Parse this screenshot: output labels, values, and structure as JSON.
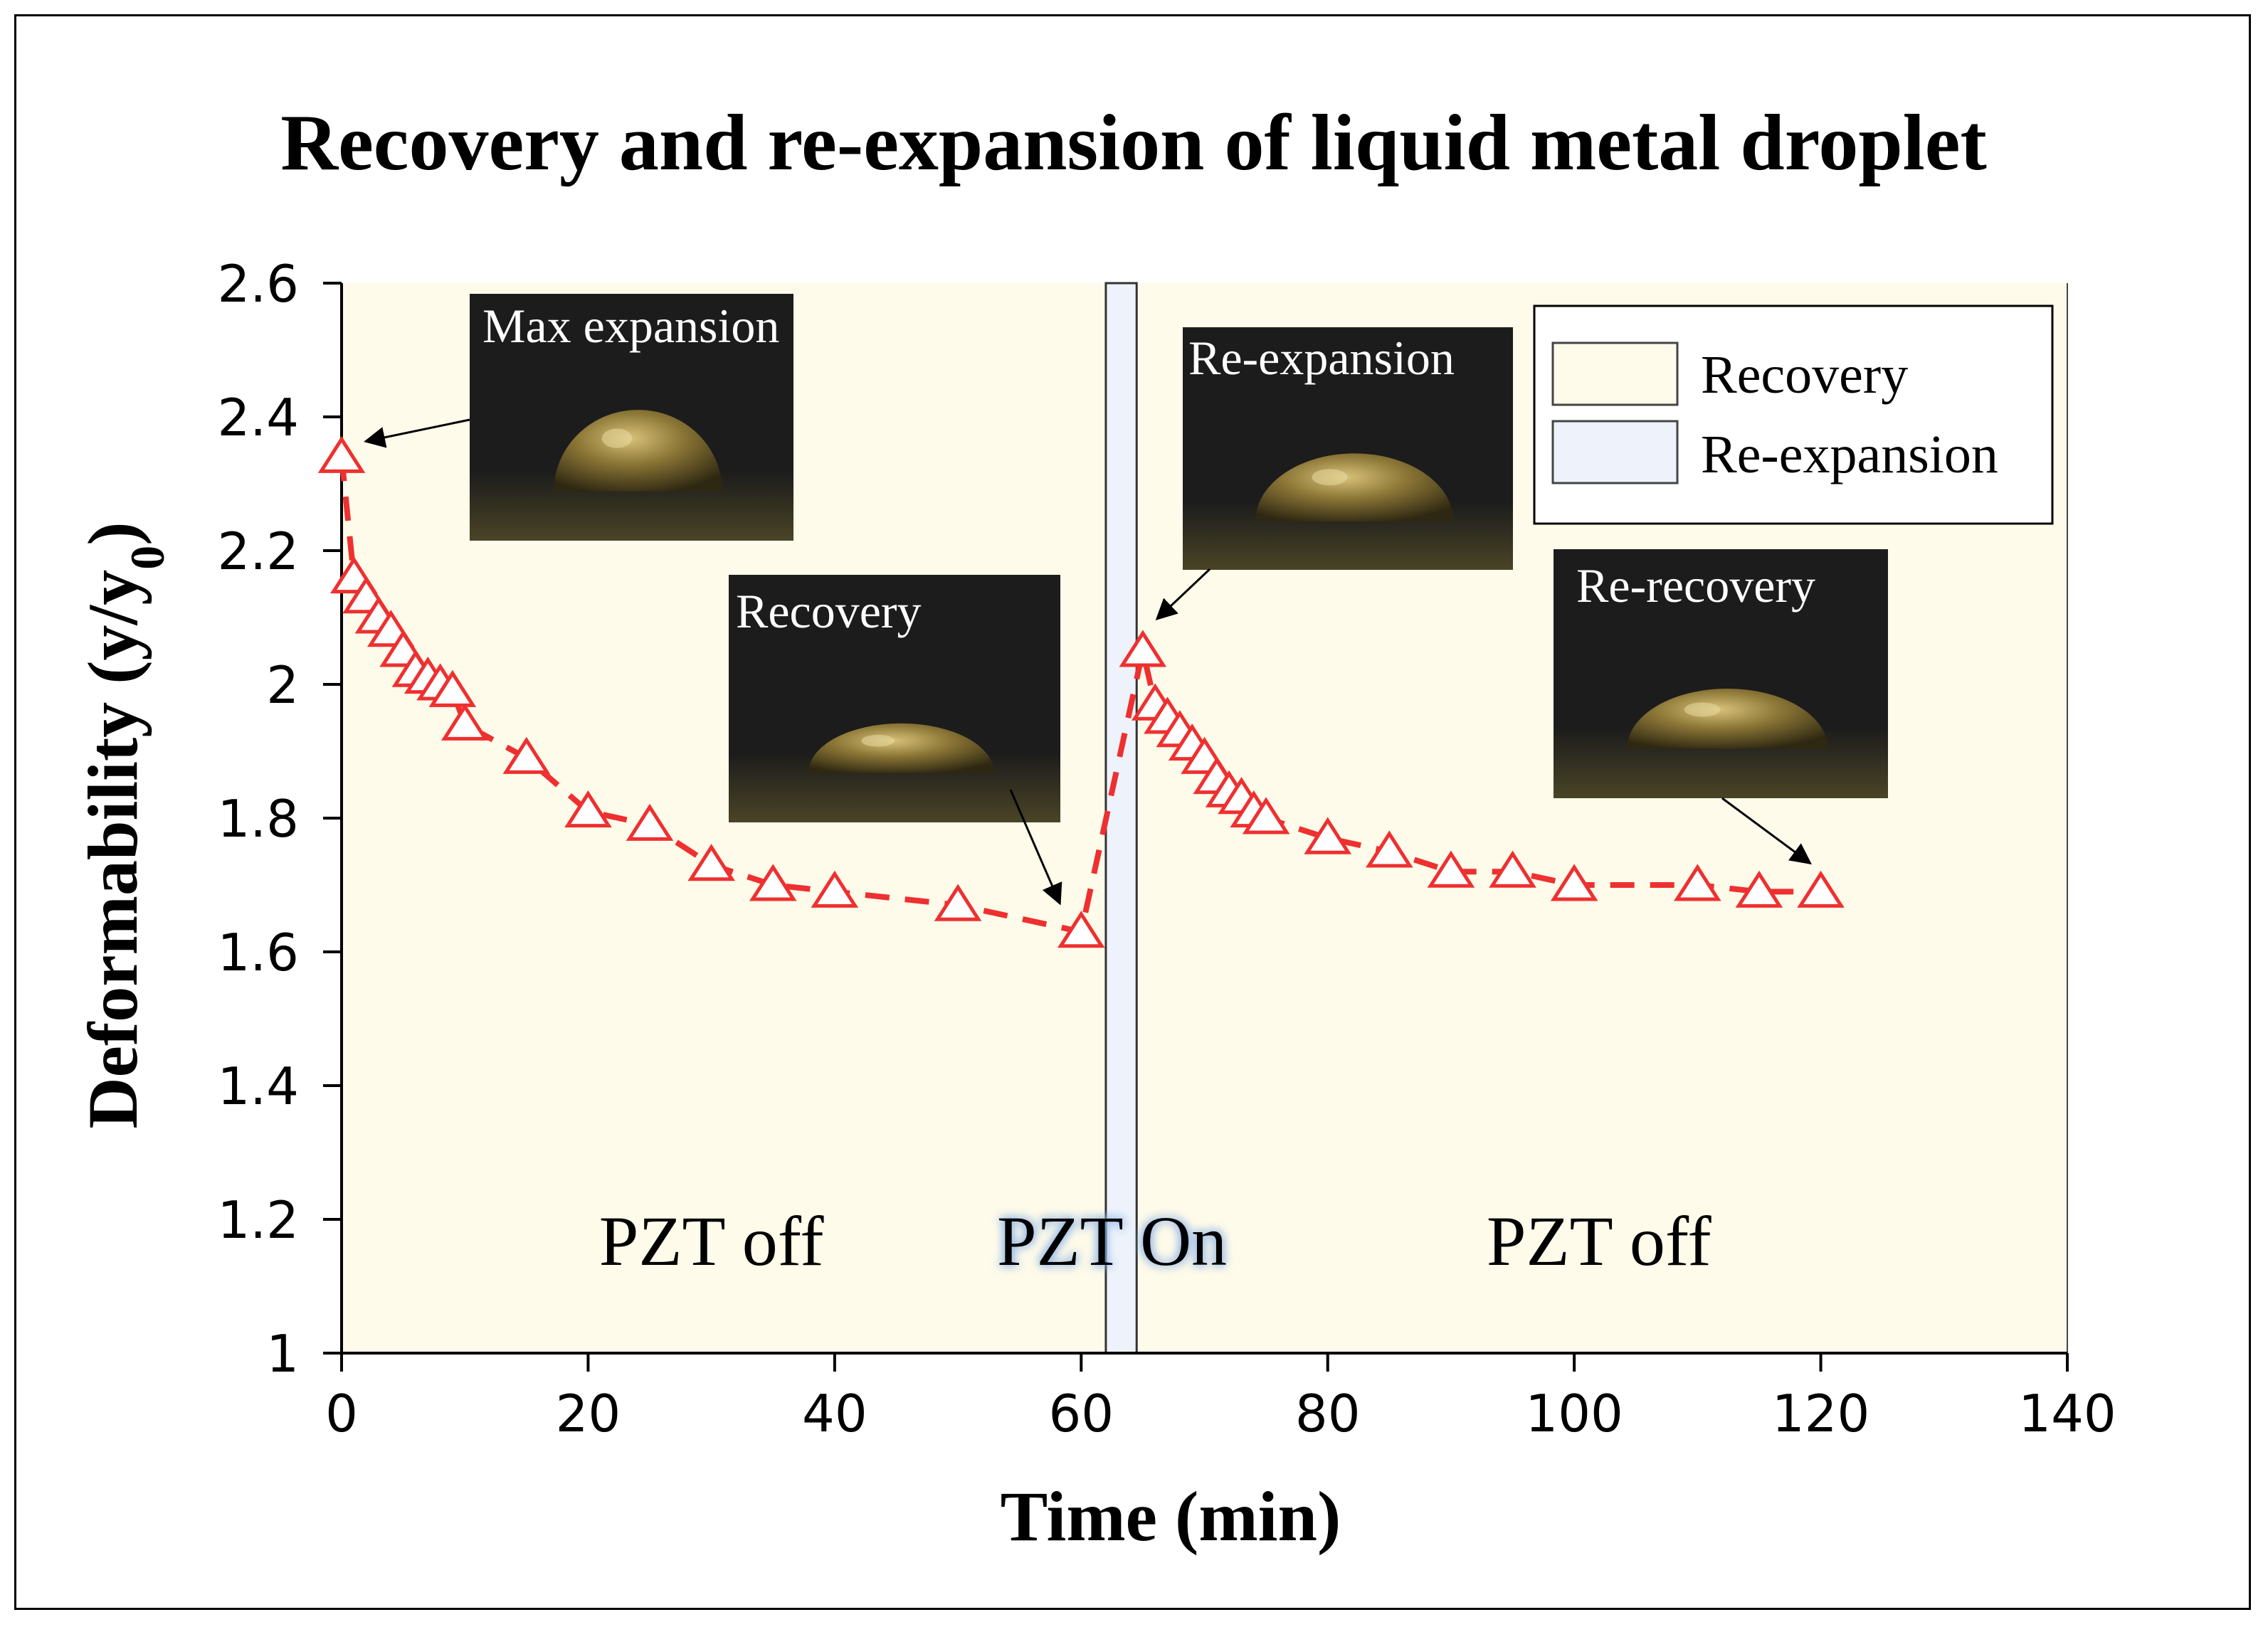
{
  "colors": {
    "plot_bg": "#fffbea",
    "band": "#eef3fb",
    "series": "#ee3030",
    "inset_bg": "#1c1c1c"
  },
  "chart_data": {
    "type": "scatter",
    "title": "Recovery and re-expansion of liquid metal droplet",
    "xlabel": "Time (min)",
    "ylabel_main": "Deformability (y/y",
    "ylabel_sub": "0",
    "ylabel_end": ")",
    "xlim": [
      0,
      140
    ],
    "ylim": [
      1,
      2.6
    ],
    "xticks": [
      0,
      20,
      40,
      60,
      80,
      100,
      120,
      140
    ],
    "xtick_labels": [
      "0",
      "20",
      "40",
      "60",
      "80",
      "100",
      "120",
      "140"
    ],
    "yticks": [
      1,
      1.2,
      1.4,
      1.6,
      1.8,
      2,
      2.2,
      2.4,
      2.6
    ],
    "ytick_labels": [
      "1",
      "1.2",
      "1.4",
      "1.6",
      "1.8",
      "2",
      "2.2",
      "2.4",
      "2.6"
    ],
    "regions": [
      {
        "name": "Recovery",
        "x_start": 0,
        "x_end": 62
      },
      {
        "name": "Re-expansion",
        "x_start": 62,
        "x_end": 64.5
      },
      {
        "name": "Recovery",
        "x_start": 64.5,
        "x_end": 140
      }
    ],
    "legend": [
      {
        "label": "Recovery",
        "color": "#fffbea"
      },
      {
        "label": "Re-expansion",
        "color": "#eef3fb"
      }
    ],
    "legend_position": "top-right",
    "annotations": [
      {
        "text": "PZT off",
        "x": 30,
        "y": 1.17
      },
      {
        "text": "PZT On",
        "x": 62.5,
        "y": 1.17
      },
      {
        "text": "PZT off",
        "x": 102,
        "y": 1.17
      }
    ],
    "insets": [
      {
        "label": "Max expansion",
        "points_to": [
          0,
          2.34
        ]
      },
      {
        "label": "Recovery",
        "points_to": [
          60,
          1.63
        ]
      },
      {
        "label": "Re-expansion",
        "points_to": [
          65,
          2.05
        ]
      },
      {
        "label": "Re-recovery",
        "points_to": [
          120,
          1.69
        ]
      }
    ],
    "series": [
      {
        "name": "Deformability",
        "marker": "open-triangle",
        "line": "dashed",
        "x": [
          0,
          1,
          2,
          3,
          4,
          5,
          6,
          7,
          8,
          9,
          10,
          15,
          20,
          25,
          30,
          35,
          40,
          50,
          60,
          65,
          66,
          67,
          68,
          69,
          70,
          71,
          72,
          73,
          74,
          75,
          80,
          85,
          90,
          95,
          100,
          110,
          115,
          120
        ],
        "y": [
          2.34,
          2.16,
          2.13,
          2.1,
          2.08,
          2.05,
          2.02,
          2.01,
          2.0,
          1.99,
          1.94,
          1.89,
          1.81,
          1.79,
          1.73,
          1.7,
          1.69,
          1.67,
          1.63,
          2.05,
          1.97,
          1.95,
          1.93,
          1.91,
          1.89,
          1.86,
          1.84,
          1.83,
          1.81,
          1.8,
          1.77,
          1.75,
          1.72,
          1.72,
          1.7,
          1.7,
          1.69,
          1.69
        ]
      }
    ]
  }
}
